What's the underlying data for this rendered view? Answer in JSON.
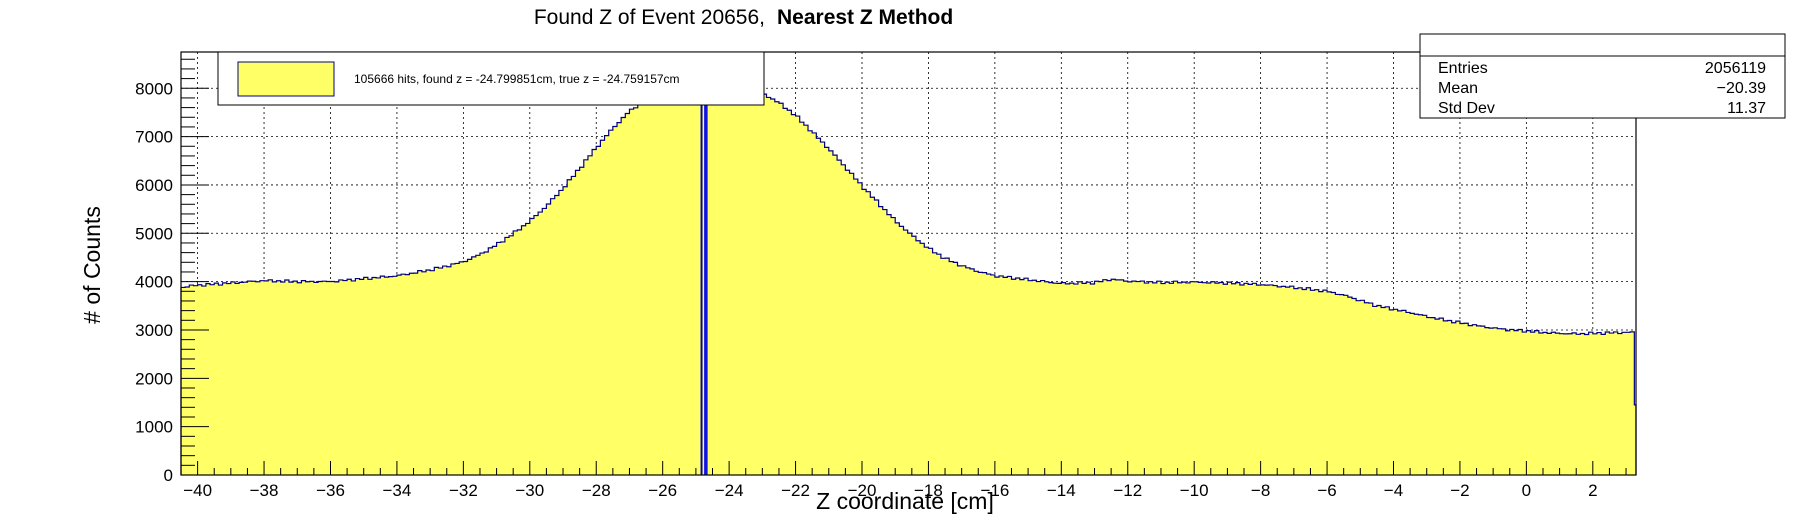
{
  "chart_data": {
    "type": "bar",
    "title": {
      "main": "Found Z of Event 20656,",
      "method": "Nearest Z Method"
    },
    "xlabel": "Z coordinate [cm]",
    "ylabel": "# of Counts",
    "xlim": [
      -40.5,
      3.3
    ],
    "ylim": [
      0,
      8750
    ],
    "xticks": [
      -40,
      -38,
      -36,
      -34,
      -32,
      -30,
      -28,
      -26,
      -24,
      -22,
      -20,
      -18,
      -16,
      -14,
      -12,
      -10,
      -8,
      -6,
      -4,
      -2,
      0,
      2
    ],
    "yticks": [
      0,
      1000,
      2000,
      3000,
      4000,
      5000,
      6000,
      7000,
      8000
    ],
    "grid": true,
    "bin_width": 0.125,
    "histogram_profile": {
      "x": [
        -40.5,
        -40.1,
        -39,
        -38,
        -37,
        -36,
        -35,
        -34,
        -33.5,
        -33,
        -32.5,
        -32,
        -31.5,
        -31,
        -30.5,
        -30,
        -29.5,
        -29,
        -28.5,
        -28,
        -27.5,
        -27,
        -26.5,
        -26,
        -25.5,
        -25,
        -24.5,
        -24,
        -23.5,
        -23,
        -22.5,
        -22,
        -21.5,
        -21,
        -20.5,
        -20,
        -19.5,
        -19,
        -18.5,
        -18,
        -17.5,
        -17,
        -16.5,
        -16,
        -15,
        -14,
        -13,
        -12.5,
        -12,
        -11,
        -10,
        -9,
        -8,
        -7,
        -6,
        -5.5,
        -5,
        -4.5,
        -4,
        -3.5,
        -3,
        -2.5,
        -2,
        -1.5,
        -1,
        -0.5,
        0,
        0.5,
        1,
        1.5,
        2,
        2.5,
        3,
        3.2
      ],
      "y": [
        3880,
        3920,
        3970,
        4020,
        4000,
        4000,
        4060,
        4120,
        4180,
        4240,
        4320,
        4410,
        4560,
        4760,
        4990,
        5250,
        5560,
        5930,
        6340,
        6770,
        7170,
        7520,
        7780,
        7920,
        7990,
        8030,
        8080,
        8100,
        8020,
        7900,
        7700,
        7440,
        7100,
        6750,
        6370,
        5980,
        5620,
        5260,
        4960,
        4690,
        4480,
        4330,
        4210,
        4120,
        4040,
        3960,
        3980,
        4050,
        4010,
        3980,
        3990,
        3970,
        3940,
        3880,
        3800,
        3720,
        3610,
        3500,
        3430,
        3360,
        3280,
        3210,
        3150,
        3090,
        3040,
        3000,
        2980,
        2950,
        2930,
        2920,
        2930,
        2940,
        2950,
        2950
      ]
    },
    "series": [
      {
        "name": "105666 hits, found z = -24.799851cm, true z = -24.759157cm",
        "color": "#ffff66"
      }
    ],
    "annotations": [
      {
        "type": "vertical_line",
        "x": -24.76,
        "color": "#1010e8",
        "label": "true z"
      },
      {
        "type": "vertical_line",
        "x": -24.8,
        "color": "#0000c8",
        "label": "found z"
      }
    ],
    "stats_box": {
      "entries_label": "Entries",
      "entries_value": "2056119",
      "mean_label": "Mean",
      "mean_value": "−20.39",
      "stddev_label": "Std Dev",
      "stddev_value": "11.37"
    },
    "legend": {
      "placement": "top-left"
    },
    "colors": {
      "fill": "#ffff66",
      "outline": "#000080",
      "marker_line": "#1a1ae0"
    }
  }
}
